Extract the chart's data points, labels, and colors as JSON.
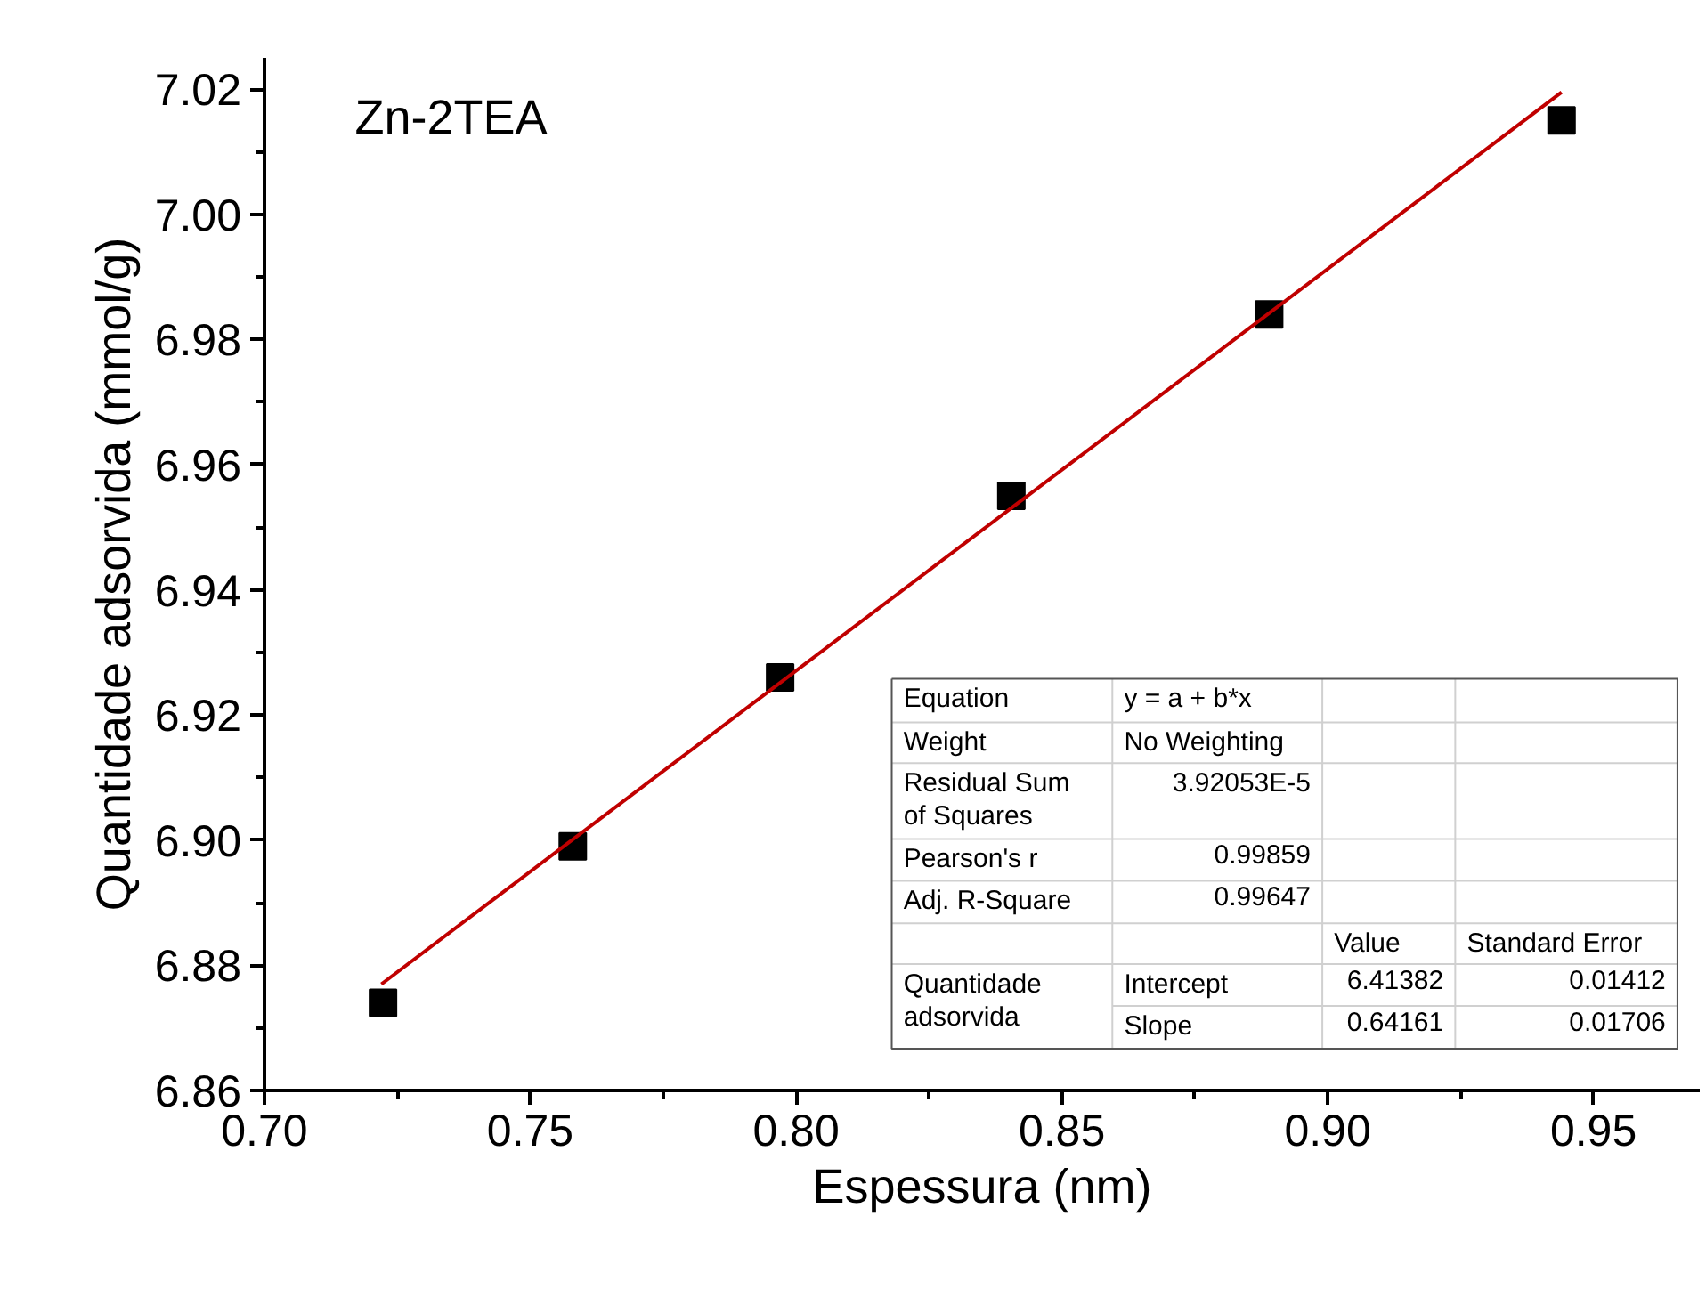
{
  "chart_data": {
    "type": "scatter",
    "title": "Zn-2TEA",
    "xlabel": "Espessura (nm)",
    "ylabel": "Quantidade adsorvida (mmol/g)",
    "x": [
      0.7223,
      0.758,
      0.797,
      0.8405,
      0.889,
      0.944
    ],
    "series": [
      {
        "color": "#000000",
        "marker": "square",
        "values": [
          6.874,
          6.899,
          6.926,
          6.955,
          6.984,
          7.015
        ]
      },
      {
        "type": "line",
        "color": "#c00000",
        "x": [
          0.722,
          0.944
        ],
        "values": [
          6.877,
          7.0195
        ],
        "line_style": "solid"
      }
    ],
    "xlim": [
      0.7,
      0.97
    ],
    "ylim": [
      6.86,
      7.025
    ],
    "xticks": [
      {
        "value": 0.7,
        "label": "0.70"
      },
      0.75,
      {
        "value": 0.8,
        "label": "0.80"
      },
      0.85,
      {
        "value": 0.9,
        "label": "0.90"
      },
      0.95
    ],
    "yticks": [
      6.86,
      6.88,
      {
        "value": 6.9,
        "label": "6.90"
      },
      6.92,
      6.94,
      6.96,
      6.98,
      {
        "value": 7.0,
        "label": "7.00"
      },
      7.02
    ],
    "grid": false,
    "annotations": [
      "Equation",
      "y = a + b*x",
      "Weight",
      "No Weighting",
      "Residual Sum\nof Squares",
      "3.92053E-5",
      "Pearson's r",
      "0.99859",
      "Adj. R-Square",
      "0.99647",
      "Value",
      "Standard Error",
      "Quantidade\nadsorvida",
      "Intercept",
      "6.41382",
      "0.01412",
      "Slope",
      "0.64161",
      "0.01706"
    ]
  }
}
